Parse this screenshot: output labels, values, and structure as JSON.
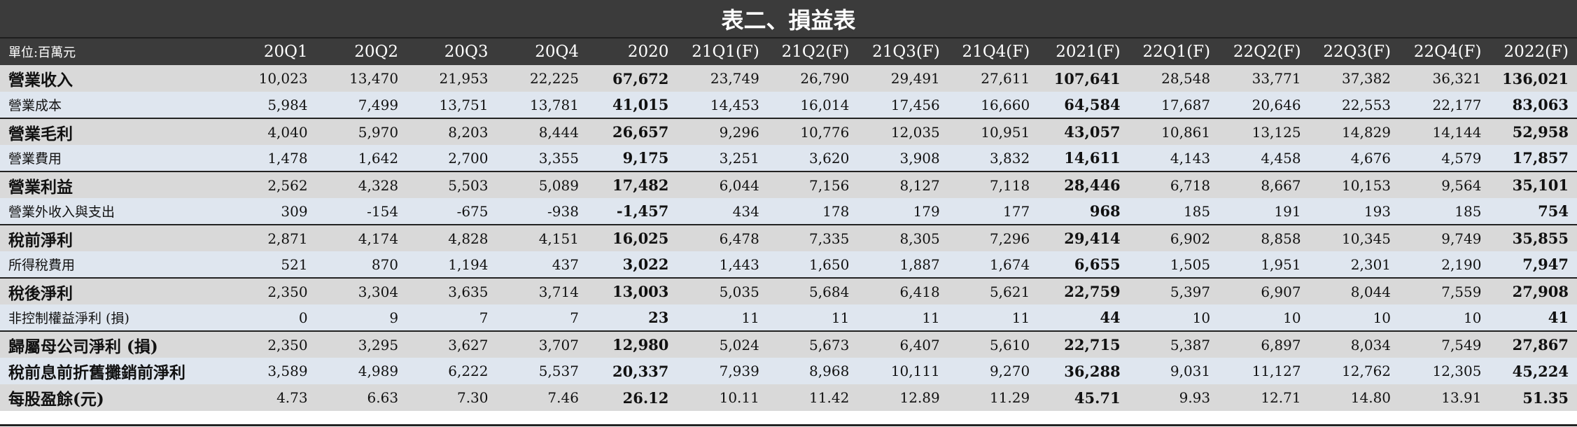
{
  "title": "表二、損益表",
  "header": {
    "unit_label": "單位:百萬元",
    "columns": [
      "20Q1",
      "20Q2",
      "20Q3",
      "20Q4",
      "2020",
      "21Q1(F)",
      "21Q2(F)",
      "21Q3(F)",
      "21Q4(F)",
      "2021(F)",
      "22Q1(F)",
      "22Q2(F)",
      "22Q3(F)",
      "22Q4(F)",
      "2022(F)"
    ]
  },
  "rows": [
    {
      "label": "營業收入",
      "values": [
        "10,023",
        "13,470",
        "21,953",
        "22,225",
        "67,672",
        "23,749",
        "26,790",
        "29,491",
        "27,611",
        "107,641",
        "28,548",
        "33,771",
        "37,382",
        "36,321",
        "136,021"
      ]
    },
    {
      "label": "營業成本",
      "values": [
        "5,984",
        "7,499",
        "13,751",
        "13,781",
        "41,015",
        "14,453",
        "16,014",
        "17,456",
        "16,660",
        "64,584",
        "17,687",
        "20,646",
        "22,553",
        "22,177",
        "83,063"
      ]
    },
    {
      "label": "營業毛利",
      "values": [
        "4,040",
        "5,970",
        "8,203",
        "8,444",
        "26,657",
        "9,296",
        "10,776",
        "12,035",
        "10,951",
        "43,057",
        "10,861",
        "13,125",
        "14,829",
        "14,144",
        "52,958"
      ]
    },
    {
      "label": "營業費用",
      "values": [
        "1,478",
        "1,642",
        "2,700",
        "3,355",
        "9,175",
        "3,251",
        "3,620",
        "3,908",
        "3,832",
        "14,611",
        "4,143",
        "4,458",
        "4,676",
        "4,579",
        "17,857"
      ]
    },
    {
      "label": "營業利益",
      "values": [
        "2,562",
        "4,328",
        "5,503",
        "5,089",
        "17,482",
        "6,044",
        "7,156",
        "8,127",
        "7,118",
        "28,446",
        "6,718",
        "8,667",
        "10,153",
        "9,564",
        "35,101"
      ]
    },
    {
      "label": "營業外收入與支出",
      "values": [
        "309",
        "-154",
        "-675",
        "-938",
        "-1,457",
        "434",
        "178",
        "179",
        "177",
        "968",
        "185",
        "191",
        "193",
        "185",
        "754"
      ]
    },
    {
      "label": "稅前淨利",
      "values": [
        "2,871",
        "4,174",
        "4,828",
        "4,151",
        "16,025",
        "6,478",
        "7,335",
        "8,305",
        "7,296",
        "29,414",
        "6,902",
        "8,858",
        "10,345",
        "9,749",
        "35,855"
      ]
    },
    {
      "label": "所得稅費用",
      "values": [
        "521",
        "870",
        "1,194",
        "437",
        "3,022",
        "1,443",
        "1,650",
        "1,887",
        "1,674",
        "6,655",
        "1,505",
        "1,951",
        "2,301",
        "2,190",
        "7,947"
      ]
    },
    {
      "label": "稅後淨利",
      "values": [
        "2,350",
        "3,304",
        "3,635",
        "3,714",
        "13,003",
        "5,035",
        "5,684",
        "6,418",
        "5,621",
        "22,759",
        "5,397",
        "6,907",
        "8,044",
        "7,559",
        "27,908"
      ]
    },
    {
      "label": "非控制權益淨利 (損)",
      "values": [
        "0",
        "9",
        "7",
        "7",
        "23",
        "11",
        "11",
        "11",
        "11",
        "44",
        "10",
        "10",
        "10",
        "10",
        "41"
      ]
    },
    {
      "label": "歸屬母公司淨利 (損)",
      "values": [
        "2,350",
        "3,295",
        "3,627",
        "3,707",
        "12,980",
        "5,024",
        "5,673",
        "6,407",
        "5,610",
        "22,715",
        "5,387",
        "6,897",
        "8,034",
        "7,549",
        "27,867"
      ]
    },
    {
      "label": "稅前息前折舊攤銷前淨利",
      "values": [
        "3,589",
        "4,989",
        "6,222",
        "5,537",
        "20,337",
        "7,939",
        "8,968",
        "10,111",
        "9,270",
        "36,288",
        "9,031",
        "11,127",
        "12,762",
        "12,305",
        "45,224"
      ]
    },
    {
      "label": "每股盈餘(元)",
      "values": [
        "4.73",
        "6.63",
        "7.30",
        "7.46",
        "26.12",
        "10.11",
        "11.42",
        "12.89",
        "11.29",
        "45.71",
        "9.93",
        "12.71",
        "14.80",
        "13.91",
        "51.35"
      ]
    }
  ]
}
